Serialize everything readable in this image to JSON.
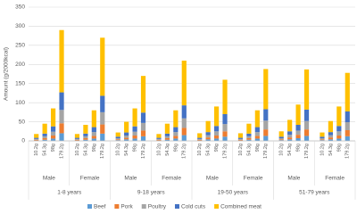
{
  "chart_data": {
    "type": "stacked_bar",
    "y_label": "Amount (g/2000kcal)",
    "ylim": [
      0,
      350
    ],
    "yticks": [
      0,
      50,
      100,
      150,
      200,
      250,
      300,
      350
    ],
    "grid": true,
    "categories": [
      "10.2g",
      "54.3g",
      "98g",
      "179.2g",
      "10.2g",
      "54.3g",
      "98g",
      "179.2g",
      "10.2g",
      "54.3g",
      "98g",
      "179.2g",
      "10.2g",
      "54.3g",
      "98g",
      "179.2g",
      "10.2g",
      "54.3g",
      "98g",
      "179.2g",
      "10.2g",
      "54.3g",
      "98g",
      "179.2g",
      "10.2g",
      "54.3g",
      "98g",
      "179.2g",
      "10.2g",
      "54.3g",
      "98g",
      "179.2g"
    ],
    "sex_labels": [
      "Male",
      "Female",
      "Male",
      "Female",
      "Male",
      "Female",
      "Male",
      "Female"
    ],
    "age_groups": [
      "1-8 years",
      "9-18 years",
      "19-50 years",
      "51-79 years"
    ],
    "legend": "bottom",
    "series": [
      {
        "name": "Beef",
        "color": "#5b9bd5",
        "values": [
          1,
          3,
          6,
          20,
          1,
          3,
          6,
          19,
          2,
          4,
          6,
          12,
          1,
          3,
          6,
          15,
          1,
          4,
          6,
          11,
          1,
          3,
          6,
          13,
          2,
          4,
          7,
          13,
          2,
          4,
          6,
          12
        ]
      },
      {
        "name": "Pork",
        "color": "#ed7d31",
        "values": [
          2,
          4,
          8,
          26,
          2,
          4,
          7,
          24,
          2,
          4,
          8,
          15,
          2,
          4,
          7,
          19,
          2,
          5,
          8,
          14,
          2,
          4,
          7,
          17,
          2,
          5,
          9,
          17,
          2,
          5,
          8,
          16
        ]
      },
      {
        "name": "Poultry",
        "color": "#a5a5a5",
        "values": [
          2,
          5,
          10,
          35,
          2,
          5,
          10,
          32,
          3,
          6,
          10,
          20,
          2,
          5,
          10,
          25,
          2,
          6,
          11,
          19,
          2,
          5,
          10,
          23,
          3,
          7,
          11,
          22,
          3,
          6,
          11,
          21
        ]
      },
      {
        "name": "Cold cuts",
        "color": "#4472c4",
        "values": [
          3,
          7,
          14,
          46,
          3,
          7,
          13,
          43,
          4,
          8,
          14,
          27,
          3,
          7,
          13,
          34,
          3,
          8,
          14,
          26,
          3,
          7,
          13,
          30,
          4,
          9,
          15,
          30,
          4,
          8,
          14,
          28
        ]
      },
      {
        "name": "Combined meat",
        "color": "#ffc000",
        "values": [
          10,
          26,
          47,
          163,
          10,
          23,
          44,
          152,
          11,
          28,
          47,
          96,
          10,
          26,
          44,
          117,
          12,
          29,
          51,
          90,
          12,
          26,
          44,
          105,
          14,
          30,
          53,
          105,
          11,
          29,
          51,
          101
        ]
      }
    ]
  }
}
